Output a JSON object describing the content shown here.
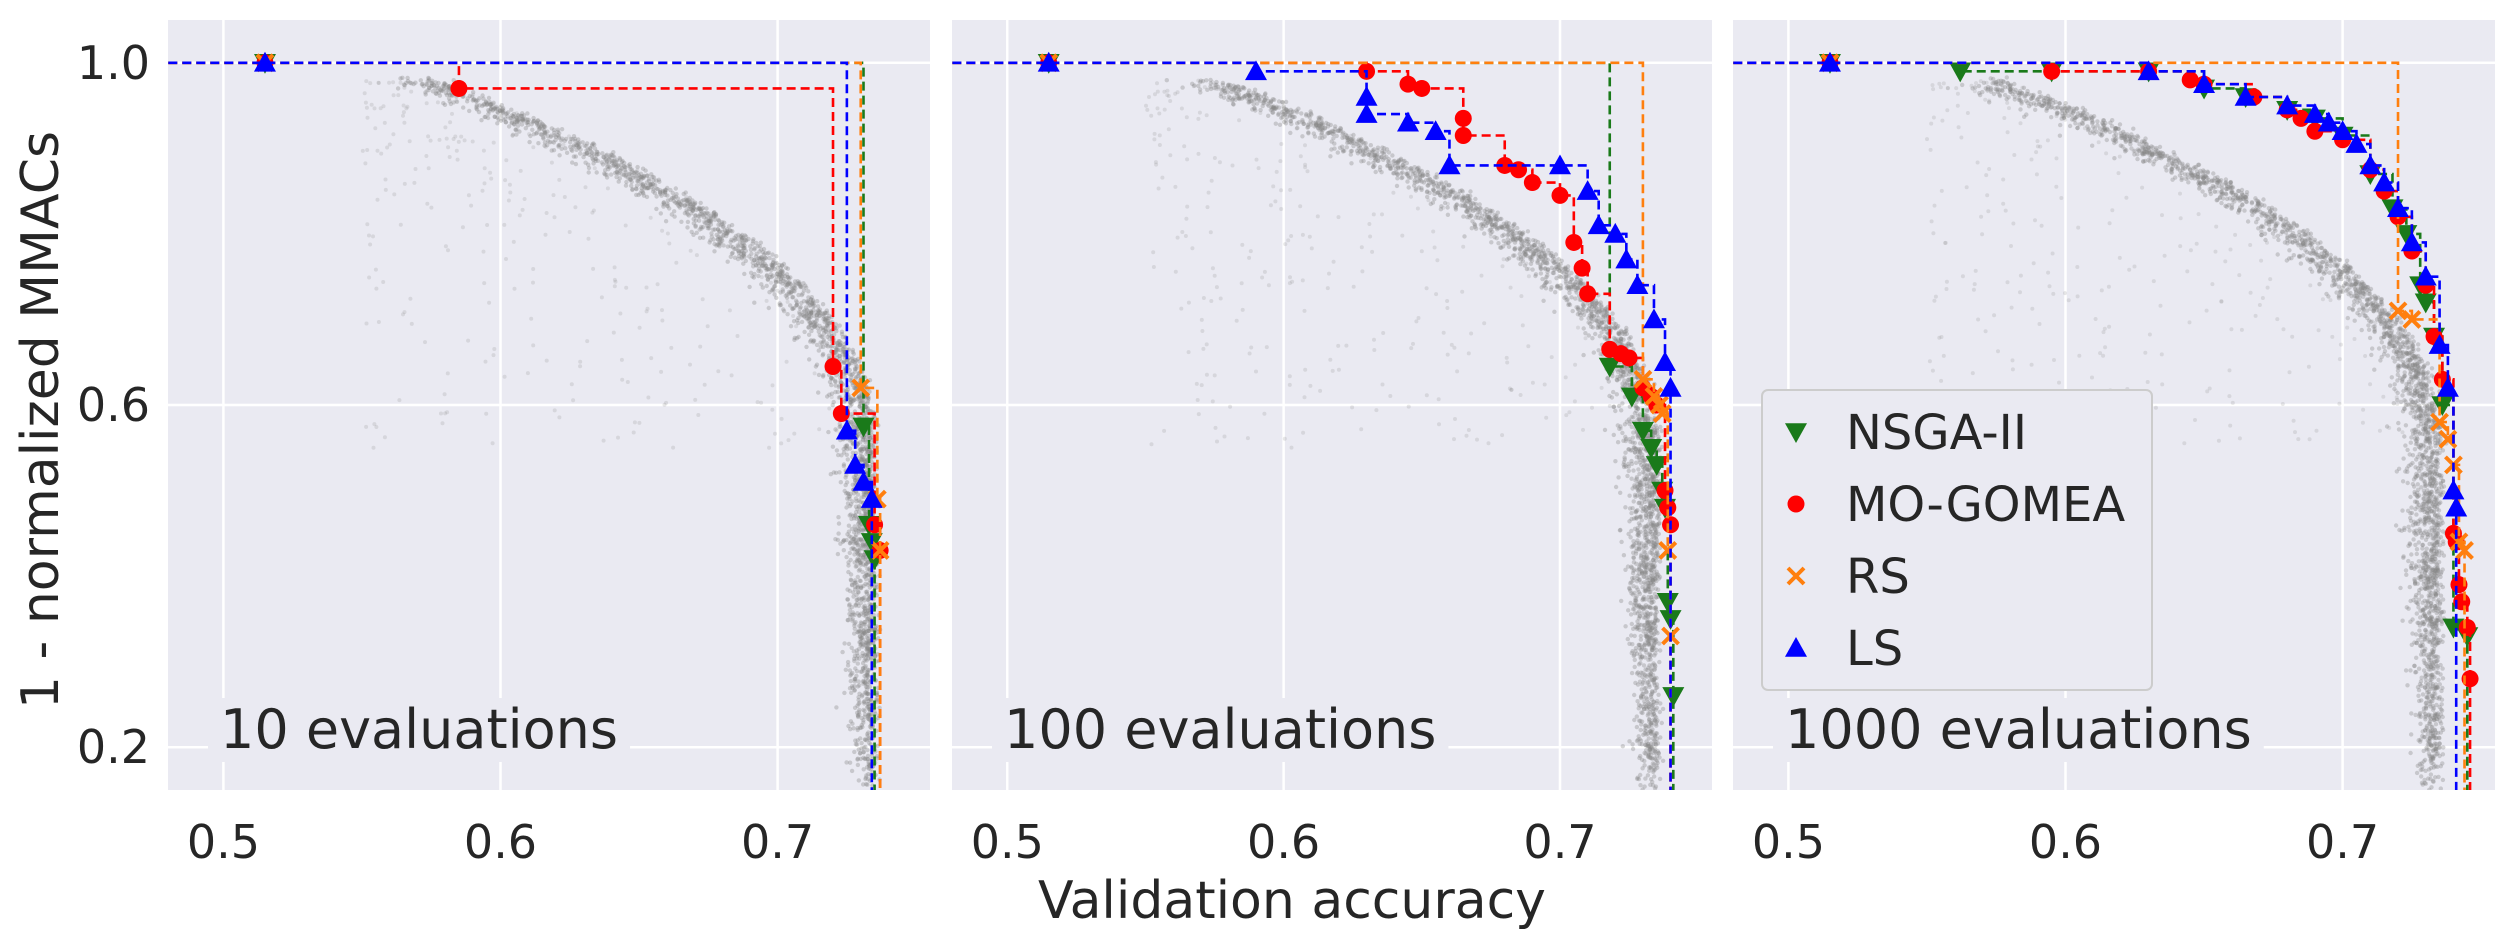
{
  "chart_data": {
    "type": "scatter",
    "xlabel": "Validation accuracy",
    "ylabel": "1 - normalized MMACs",
    "xticks": [
      "0.5",
      "0.6",
      "0.7"
    ],
    "yticks": [
      "0.2",
      "0.6",
      "1.0"
    ],
    "xlim": [
      0.48,
      0.755
    ],
    "ylim": [
      0.15,
      1.05
    ],
    "grid": true,
    "legend_position": "center-left of third panel",
    "background_cloud": {
      "description_color": "#888888",
      "points": "dense point cloud of all evaluated architectures"
    },
    "series_styles": [
      {
        "name": "NSGA-II",
        "color": "#1a7a1a",
        "marker": "triangle-down"
      },
      {
        "name": "MO-GOMEA",
        "color": "#ff0000",
        "marker": "circle"
      },
      {
        "name": "RS",
        "color": "#ff7f0e",
        "marker": "x"
      },
      {
        "name": "LS",
        "color": "#0000ff",
        "marker": "triangle-up"
      }
    ],
    "panels": [
      {
        "label": "10 evaluations",
        "series": [
          {
            "name": "NSGA-II",
            "points": [
              [
                0.515,
                1.0
              ],
              [
                0.731,
                0.575
              ],
              [
                0.733,
                0.46
              ],
              [
                0.734,
                0.44
              ],
              [
                0.735,
                0.42
              ]
            ]
          },
          {
            "name": "MO-GOMEA",
            "points": [
              [
                0.515,
                1.0
              ],
              [
                0.585,
                0.97
              ],
              [
                0.72,
                0.645
              ],
              [
                0.723,
                0.59
              ],
              [
                0.735,
                0.46
              ],
              [
                0.737,
                0.43
              ]
            ]
          },
          {
            "name": "RS",
            "points": [
              [
                0.515,
                1.0
              ],
              [
                0.73,
                0.62
              ],
              [
                0.736,
                0.49
              ],
              [
                0.737,
                0.43
              ]
            ]
          },
          {
            "name": "LS",
            "points": [
              [
                0.515,
                1.0
              ],
              [
                0.725,
                0.57
              ],
              [
                0.728,
                0.53
              ],
              [
                0.731,
                0.51
              ],
              [
                0.734,
                0.49
              ]
            ]
          }
        ]
      },
      {
        "label": "100 evaluations",
        "series": [
          {
            "name": "NSGA-II",
            "points": [
              [
                0.515,
                1.0
              ],
              [
                0.718,
                0.645
              ],
              [
                0.726,
                0.61
              ],
              [
                0.73,
                0.57
              ],
              [
                0.733,
                0.55
              ],
              [
                0.735,
                0.53
              ],
              [
                0.737,
                0.5
              ],
              [
                0.738,
                0.48
              ],
              [
                0.739,
                0.37
              ],
              [
                0.74,
                0.35
              ],
              [
                0.741,
                0.26
              ]
            ]
          },
          {
            "name": "MO-GOMEA",
            "points": [
              [
                0.515,
                1.0
              ],
              [
                0.63,
                0.99
              ],
              [
                0.645,
                0.975
              ],
              [
                0.65,
                0.97
              ],
              [
                0.665,
                0.935
              ],
              [
                0.665,
                0.915
              ],
              [
                0.68,
                0.88
              ],
              [
                0.685,
                0.875
              ],
              [
                0.69,
                0.86
              ],
              [
                0.7,
                0.845
              ],
              [
                0.705,
                0.79
              ],
              [
                0.708,
                0.76
              ],
              [
                0.71,
                0.73
              ],
              [
                0.718,
                0.665
              ],
              [
                0.722,
                0.66
              ],
              [
                0.725,
                0.655
              ],
              [
                0.73,
                0.62
              ],
              [
                0.733,
                0.61
              ],
              [
                0.735,
                0.6
              ],
              [
                0.738,
                0.5
              ],
              [
                0.739,
                0.48
              ],
              [
                0.74,
                0.46
              ]
            ]
          },
          {
            "name": "RS",
            "points": [
              [
                0.515,
                1.0
              ],
              [
                0.73,
                0.63
              ],
              [
                0.734,
                0.61
              ],
              [
                0.736,
                0.6
              ],
              [
                0.737,
                0.59
              ],
              [
                0.739,
                0.43
              ],
              [
                0.74,
                0.33
              ]
            ]
          },
          {
            "name": "LS",
            "points": [
              [
                0.515,
                1.0
              ],
              [
                0.59,
                0.99
              ],
              [
                0.63,
                0.96
              ],
              [
                0.63,
                0.94
              ],
              [
                0.645,
                0.93
              ],
              [
                0.655,
                0.92
              ],
              [
                0.66,
                0.88
              ],
              [
                0.7,
                0.88
              ],
              [
                0.71,
                0.85
              ],
              [
                0.714,
                0.81
              ],
              [
                0.72,
                0.8
              ],
              [
                0.724,
                0.77
              ],
              [
                0.728,
                0.74
              ],
              [
                0.734,
                0.7
              ],
              [
                0.738,
                0.65
              ],
              [
                0.74,
                0.62
              ]
            ]
          }
        ]
      },
      {
        "label": "1000 evaluations",
        "series": [
          {
            "name": "NSGA-II",
            "points": [
              [
                0.515,
                1.0
              ],
              [
                0.562,
                0.99
              ],
              [
                0.595,
                0.99
              ],
              [
                0.63,
                0.99
              ],
              [
                0.65,
                0.97
              ],
              [
                0.665,
                0.96
              ],
              [
                0.68,
                0.945
              ],
              [
                0.69,
                0.935
              ],
              [
                0.7,
                0.915
              ],
              [
                0.71,
                0.87
              ],
              [
                0.718,
                0.83
              ],
              [
                0.723,
                0.8
              ],
              [
                0.728,
                0.74
              ],
              [
                0.73,
                0.72
              ],
              [
                0.733,
                0.68
              ],
              [
                0.736,
                0.6
              ],
              [
                0.74,
                0.34
              ],
              [
                0.745,
                0.33
              ]
            ]
          },
          {
            "name": "MO-GOMEA",
            "points": [
              [
                0.515,
                1.0
              ],
              [
                0.595,
                0.99
              ],
              [
                0.63,
                0.99
              ],
              [
                0.645,
                0.98
              ],
              [
                0.65,
                0.975
              ],
              [
                0.668,
                0.96
              ],
              [
                0.68,
                0.945
              ],
              [
                0.685,
                0.935
              ],
              [
                0.69,
                0.92
              ],
              [
                0.7,
                0.91
              ],
              [
                0.71,
                0.875
              ],
              [
                0.715,
                0.85
              ],
              [
                0.72,
                0.82
              ],
              [
                0.725,
                0.78
              ],
              [
                0.73,
                0.74
              ],
              [
                0.733,
                0.68
              ],
              [
                0.736,
                0.63
              ],
              [
                0.74,
                0.45
              ],
              [
                0.741,
                0.44
              ],
              [
                0.742,
                0.39
              ],
              [
                0.743,
                0.37
              ],
              [
                0.745,
                0.34
              ],
              [
                0.746,
                0.28
              ]
            ]
          },
          {
            "name": "RS",
            "points": [
              [
                0.515,
                1.0
              ],
              [
                0.72,
                0.71
              ],
              [
                0.725,
                0.7
              ],
              [
                0.735,
                0.58
              ],
              [
                0.738,
                0.56
              ],
              [
                0.74,
                0.53
              ],
              [
                0.742,
                0.44
              ],
              [
                0.744,
                0.43
              ]
            ]
          },
          {
            "name": "LS",
            "points": [
              [
                0.515,
                1.0
              ],
              [
                0.63,
                0.99
              ],
              [
                0.65,
                0.975
              ],
              [
                0.665,
                0.96
              ],
              [
                0.68,
                0.95
              ],
              [
                0.69,
                0.94
              ],
              [
                0.695,
                0.93
              ],
              [
                0.7,
                0.92
              ],
              [
                0.705,
                0.905
              ],
              [
                0.71,
                0.88
              ],
              [
                0.715,
                0.86
              ],
              [
                0.72,
                0.83
              ],
              [
                0.725,
                0.79
              ],
              [
                0.73,
                0.75
              ],
              [
                0.735,
                0.67
              ],
              [
                0.738,
                0.62
              ],
              [
                0.74,
                0.5
              ],
              [
                0.741,
                0.48
              ]
            ]
          }
        ]
      }
    ]
  }
}
